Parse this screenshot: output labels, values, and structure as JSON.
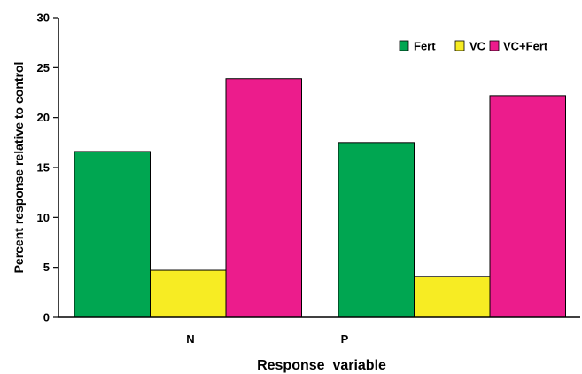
{
  "chart_data": {
    "type": "bar",
    "xlabel": "Response  variable",
    "ylabel": "Percent response relative to control",
    "categories": [
      "N",
      "P"
    ],
    "series": [
      {
        "name": "Fert",
        "color": "#00a651",
        "values": [
          16.6,
          17.5
        ]
      },
      {
        "name": "VC",
        "color": "#f7ec23",
        "values": [
          4.7,
          4.1
        ]
      },
      {
        "name": "VC+Fert",
        "color": "#ec1c8c",
        "values": [
          23.9,
          22.2
        ]
      }
    ],
    "ylim": [
      0,
      30
    ],
    "yticks": [
      0,
      5,
      10,
      15,
      20,
      25,
      30
    ],
    "legend_position": "top-right",
    "grid": false
  }
}
